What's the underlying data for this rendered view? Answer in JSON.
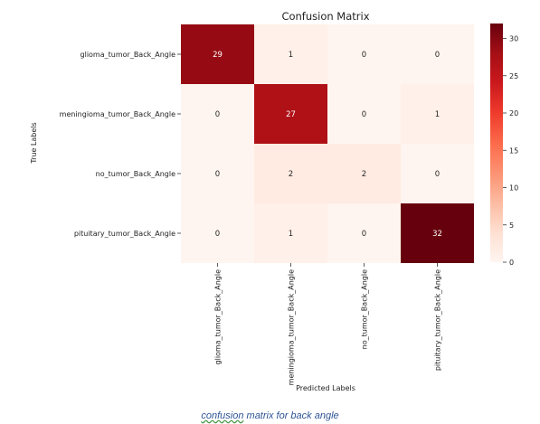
{
  "chart_data": {
    "type": "heatmap",
    "title": "Confusion Matrix",
    "xlabel": "Predicted Labels",
    "ylabel": "True Labels",
    "row_labels": [
      "glioma_tumor_Back_Angle",
      "meningioma_tumor_Back_Angle",
      "no_tumor_Back_Angle",
      "pituitary_tumor_Back_Angle"
    ],
    "col_labels": [
      "glioma_tumor_Back_Angle",
      "meningioma_tumor_Back_Angle",
      "no_tumor_Back_Angle",
      "pituitary_tumor_Back_Angle"
    ],
    "values": [
      [
        29,
        1,
        0,
        0
      ],
      [
        0,
        27,
        0,
        1
      ],
      [
        0,
        2,
        2,
        0
      ],
      [
        0,
        1,
        0,
        32
      ]
    ],
    "colorbar": {
      "min": 0,
      "max": 32,
      "ticks": [
        0,
        5,
        10,
        15,
        20,
        25,
        30
      ],
      "colormap": "Reds"
    }
  },
  "caption": {
    "word1": "confusion",
    "rest": " matrix for back  angle"
  }
}
